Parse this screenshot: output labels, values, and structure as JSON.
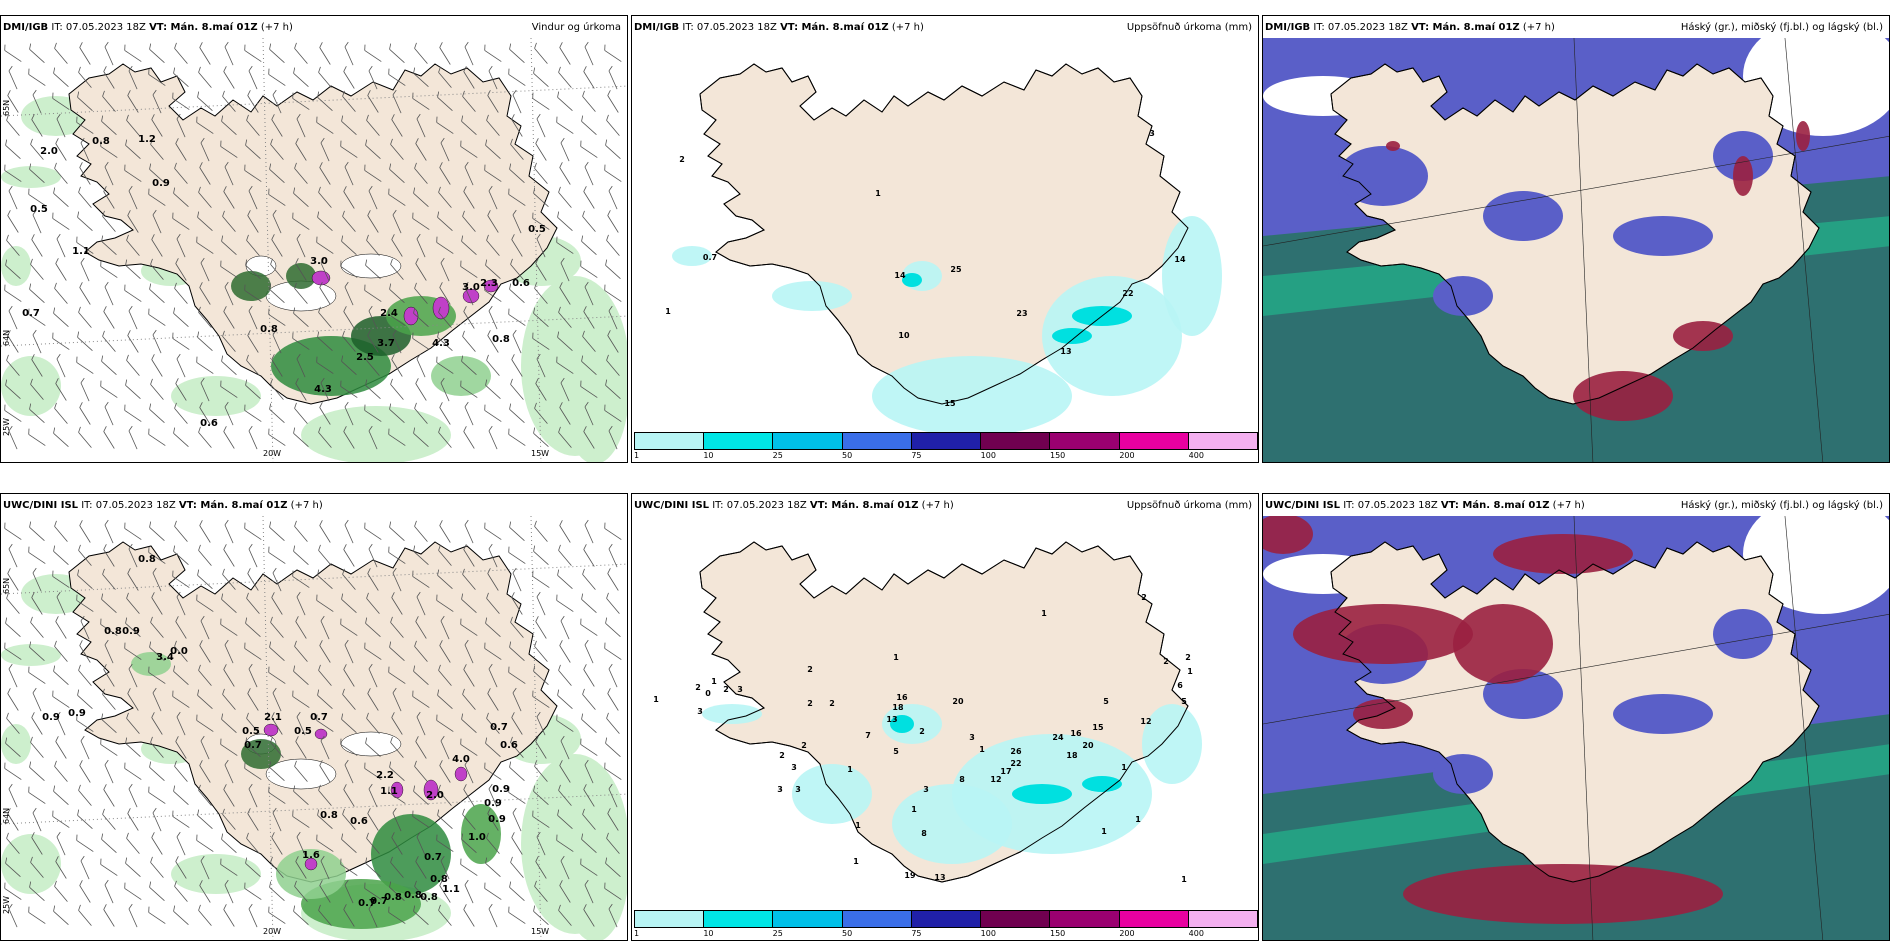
{
  "panels": [
    {
      "model_bold": "DMI/IGB",
      "init": " IT: 07.05.2023 18Z ",
      "vt_bold": "VT: Mán. 8.maí 01Z",
      "offset": " (+7 h)",
      "field": "Vindur og úrkoma",
      "type": "wind",
      "labels": [
        {
          "t": "2.0",
          "x": 48,
          "y": 138
        },
        {
          "t": "0.8",
          "x": 100,
          "y": 128
        },
        {
          "t": "1.2",
          "x": 146,
          "y": 126
        },
        {
          "t": "0.9",
          "x": 160,
          "y": 170
        },
        {
          "t": "0.5",
          "x": 38,
          "y": 196
        },
        {
          "t": "1.1",
          "x": 80,
          "y": 238
        },
        {
          "t": "3.0",
          "x": 318,
          "y": 248
        },
        {
          "t": "3.0",
          "x": 470,
          "y": 274
        },
        {
          "t": "2.3",
          "x": 488,
          "y": 270
        },
        {
          "t": "0.6",
          "x": 520,
          "y": 270
        },
        {
          "t": "0.5",
          "x": 536,
          "y": 216
        },
        {
          "t": "0.7",
          "x": 30,
          "y": 300
        },
        {
          "t": "0.8",
          "x": 268,
          "y": 316
        },
        {
          "t": "2.4",
          "x": 388,
          "y": 300
        },
        {
          "t": "4.3",
          "x": 440,
          "y": 330
        },
        {
          "t": "3.7",
          "x": 385,
          "y": 330
        },
        {
          "t": "2.5",
          "x": 364,
          "y": 344
        },
        {
          "t": "0.8",
          "x": 500,
          "y": 326
        },
        {
          "t": "4.3",
          "x": 322,
          "y": 376
        },
        {
          "t": "0.6",
          "x": 208,
          "y": 410
        }
      ],
      "axes": {
        "lat1": "65N",
        "lat2": "64N",
        "lat3": "25W",
        "lon1": "20W",
        "lon2": "15W"
      }
    },
    {
      "model_bold": "DMI/IGB",
      "init": " IT: 07.05.2023 18Z ",
      "vt_bold": "VT: Mán. 8.maí 01Z",
      "offset": " (+7 h)",
      "field": "Uppsöfnuð úrkoma (mm)",
      "type": "precip",
      "labels": [
        {
          "t": "2",
          "x": 50,
          "y": 146
        },
        {
          "t": "1",
          "x": 246,
          "y": 180
        },
        {
          "t": "3",
          "x": 520,
          "y": 120
        },
        {
          "t": "0.7",
          "x": 78,
          "y": 244
        },
        {
          "t": "14",
          "x": 268,
          "y": 262
        },
        {
          "t": "25",
          "x": 324,
          "y": 256
        },
        {
          "t": "1",
          "x": 36,
          "y": 298
        },
        {
          "t": "10",
          "x": 272,
          "y": 322
        },
        {
          "t": "23",
          "x": 390,
          "y": 300
        },
        {
          "t": "14",
          "x": 548,
          "y": 246
        },
        {
          "t": "22",
          "x": 496,
          "y": 280
        },
        {
          "t": "13",
          "x": 434,
          "y": 338
        },
        {
          "t": "15",
          "x": 318,
          "y": 390
        }
      ],
      "axes": {}
    },
    {
      "model_bold": "DMI/IGB",
      "init": " IT: 07.05.2023 18Z ",
      "vt_bold": "VT: Mán. 8.maí 01Z",
      "offset": " (+7 h)",
      "field": "Háský (gr.), miðský (fj.bl.) og lágský (bl.)",
      "type": "cloud",
      "labels": [],
      "axes": {}
    },
    {
      "model_bold": "UWC/DINI ISL",
      "init": " IT: 07.05.2023 18Z ",
      "vt_bold": "VT: Mán. 8.maí 01Z",
      "offset": " (+7 h)",
      "field": "",
      "type": "wind",
      "labels": [
        {
          "t": "0.8",
          "x": 146,
          "y": 68
        },
        {
          "t": "0.8",
          "x": 112,
          "y": 140
        },
        {
          "t": "0.9",
          "x": 130,
          "y": 140
        },
        {
          "t": "0.0",
          "x": 178,
          "y": 160
        },
        {
          "t": "3.4",
          "x": 164,
          "y": 166
        },
        {
          "t": "0.9",
          "x": 50,
          "y": 226
        },
        {
          "t": "0.9",
          "x": 76,
          "y": 222
        },
        {
          "t": "2.1",
          "x": 272,
          "y": 226
        },
        {
          "t": "0.5",
          "x": 250,
          "y": 240
        },
        {
          "t": "0.7",
          "x": 252,
          "y": 254
        },
        {
          "t": "0.7",
          "x": 318,
          "y": 226
        },
        {
          "t": "0.5",
          "x": 302,
          "y": 240
        },
        {
          "t": "0.7",
          "x": 498,
          "y": 236
        },
        {
          "t": "0.6",
          "x": 508,
          "y": 254
        },
        {
          "t": "2.2",
          "x": 384,
          "y": 284
        },
        {
          "t": "1.1",
          "x": 388,
          "y": 300
        },
        {
          "t": "2.0",
          "x": 434,
          "y": 304
        },
        {
          "t": "4.0",
          "x": 460,
          "y": 268
        },
        {
          "t": "0.9",
          "x": 500,
          "y": 298
        },
        {
          "t": "0.9",
          "x": 492,
          "y": 312
        },
        {
          "t": "0.9",
          "x": 496,
          "y": 328
        },
        {
          "t": "0.8",
          "x": 328,
          "y": 324
        },
        {
          "t": "0.6",
          "x": 358,
          "y": 330
        },
        {
          "t": "1.0",
          "x": 476,
          "y": 346
        },
        {
          "t": "0.7",
          "x": 432,
          "y": 366
        },
        {
          "t": "1.6",
          "x": 310,
          "y": 364
        },
        {
          "t": "0.8",
          "x": 438,
          "y": 388
        },
        {
          "t": "0.7",
          "x": 366,
          "y": 412
        },
        {
          "t": "0.7",
          "x": 378,
          "y": 410
        },
        {
          "t": "0.8",
          "x": 392,
          "y": 406
        },
        {
          "t": "0.8",
          "x": 412,
          "y": 404
        },
        {
          "t": "0.8",
          "x": 428,
          "y": 406
        },
        {
          "t": "1.1",
          "x": 450,
          "y": 398
        }
      ],
      "axes": {
        "lat1": "65N",
        "lat2": "64N",
        "lat3": "25W",
        "lon1": "20W",
        "lon2": "15W"
      }
    },
    {
      "model_bold": "UWC/DINI ISL",
      "init": " IT: 07.05.2023 18Z ",
      "vt_bold": "VT: Mán. 8.maí 01Z",
      "offset": " (+7 h)",
      "field": "Uppsöfnuð úrkoma (mm)",
      "type": "precip",
      "labels": [
        {
          "t": "1",
          "x": 412,
          "y": 122
        },
        {
          "t": "2",
          "x": 512,
          "y": 106
        },
        {
          "t": "1",
          "x": 264,
          "y": 166
        },
        {
          "t": "2",
          "x": 178,
          "y": 178
        },
        {
          "t": "1",
          "x": 82,
          "y": 190
        },
        {
          "t": "2",
          "x": 66,
          "y": 196
        },
        {
          "t": "0",
          "x": 76,
          "y": 202
        },
        {
          "t": "2",
          "x": 94,
          "y": 198
        },
        {
          "t": "3",
          "x": 108,
          "y": 198
        },
        {
          "t": "1",
          "x": 24,
          "y": 208
        },
        {
          "t": "3",
          "x": 68,
          "y": 220
        },
        {
          "t": "2",
          "x": 178,
          "y": 212
        },
        {
          "t": "2",
          "x": 200,
          "y": 212
        },
        {
          "t": "16",
          "x": 270,
          "y": 206
        },
        {
          "t": "18",
          "x": 266,
          "y": 216
        },
        {
          "t": "13",
          "x": 260,
          "y": 228
        },
        {
          "t": "20",
          "x": 326,
          "y": 210
        },
        {
          "t": "1",
          "x": 558,
          "y": 180
        },
        {
          "t": "2",
          "x": 534,
          "y": 170
        },
        {
          "t": "2",
          "x": 556,
          "y": 166
        },
        {
          "t": "6",
          "x": 548,
          "y": 194
        },
        {
          "t": "5",
          "x": 552,
          "y": 210
        },
        {
          "t": "7",
          "x": 236,
          "y": 244
        },
        {
          "t": "2",
          "x": 290,
          "y": 240
        },
        {
          "t": "3",
          "x": 340,
          "y": 246
        },
        {
          "t": "1",
          "x": 350,
          "y": 258
        },
        {
          "t": "5",
          "x": 474,
          "y": 210
        },
        {
          "t": "12",
          "x": 514,
          "y": 230
        },
        {
          "t": "15",
          "x": 466,
          "y": 236
        },
        {
          "t": "2",
          "x": 172,
          "y": 254
        },
        {
          "t": "2",
          "x": 150,
          "y": 264
        },
        {
          "t": "3",
          "x": 162,
          "y": 276
        },
        {
          "t": "5",
          "x": 264,
          "y": 260
        },
        {
          "t": "24",
          "x": 426,
          "y": 246
        },
        {
          "t": "16",
          "x": 444,
          "y": 242
        },
        {
          "t": "20",
          "x": 456,
          "y": 254
        },
        {
          "t": "26",
          "x": 384,
          "y": 260
        },
        {
          "t": "22",
          "x": 384,
          "y": 272
        },
        {
          "t": "18",
          "x": 440,
          "y": 264
        },
        {
          "t": "3",
          "x": 166,
          "y": 298
        },
        {
          "t": "3",
          "x": 148,
          "y": 298
        },
        {
          "t": "1",
          "x": 218,
          "y": 278
        },
        {
          "t": "1",
          "x": 226,
          "y": 334
        },
        {
          "t": "3",
          "x": 294,
          "y": 298
        },
        {
          "t": "8",
          "x": 330,
          "y": 288
        },
        {
          "t": "17",
          "x": 374,
          "y": 280
        },
        {
          "t": "12",
          "x": 364,
          "y": 288
        },
        {
          "t": "1",
          "x": 492,
          "y": 276
        },
        {
          "t": "1",
          "x": 506,
          "y": 328
        },
        {
          "t": "1",
          "x": 472,
          "y": 340
        },
        {
          "t": "8",
          "x": 292,
          "y": 342
        },
        {
          "t": "1",
          "x": 282,
          "y": 318
        },
        {
          "t": "19",
          "x": 278,
          "y": 384
        },
        {
          "t": "13",
          "x": 308,
          "y": 386
        },
        {
          "t": "1",
          "x": 552,
          "y": 388
        },
        {
          "t": "1",
          "x": 224,
          "y": 370
        }
      ],
      "axes": {}
    },
    {
      "model_bold": "UWC/DINI ISL",
      "init": " IT: 07.05.2023 18Z ",
      "vt_bold": "VT: Mán. 8.maí 01Z",
      "offset": " (+7 h)",
      "field": "Háský (gr.), miðský (fj.bl.) og lágský (bl.)",
      "type": "cloud",
      "labels": [],
      "axes": {}
    }
  ],
  "colorbar": {
    "ticks": [
      "1",
      "10",
      "25",
      "50",
      "75",
      "100",
      "150",
      "200",
      "400"
    ],
    "colors": [
      "#b8f5f5",
      "#00e6e6",
      "#00c0e8",
      "#3a6ee8",
      "#2020a8",
      "#700050",
      "#9a0070",
      "#e800a0",
      "#f4b0f0"
    ]
  },
  "colors": {
    "land": "#f3e6d8",
    "cloud_sea": "#5a5fc8",
    "cloud_teal": "#2e7070"
  }
}
